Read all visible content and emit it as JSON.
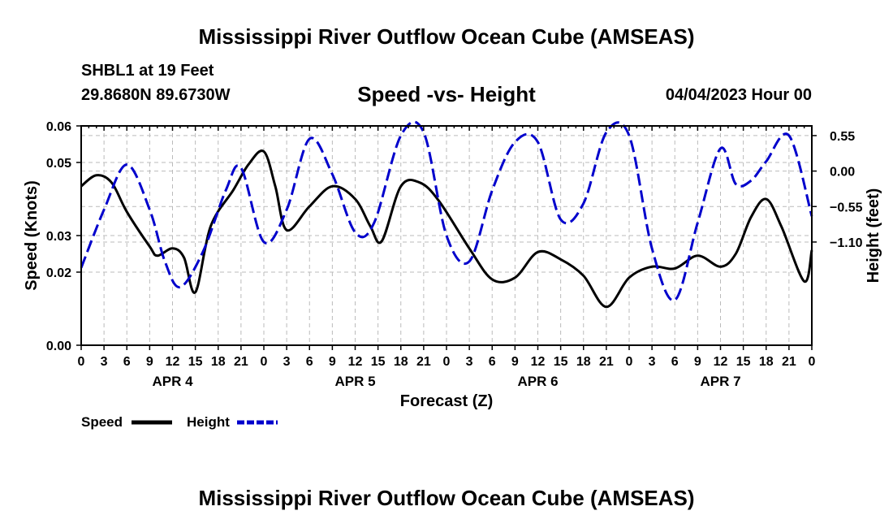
{
  "header": {
    "title": "Mississippi River Outflow Ocean Cube (AMSEAS)",
    "station": "SHBL1 at 19 Feet",
    "coords": "29.8680N  89.6730W",
    "subtitle": "Speed -vs- Height",
    "datetime": "04/04/2023 Hour 00"
  },
  "footer": {
    "title": "Mississippi River Outflow Ocean Cube (AMSEAS)"
  },
  "colors": {
    "speed": "#000000",
    "height": "#0000cc",
    "grid": "#bbbbbb"
  },
  "chart_data": {
    "type": "line",
    "title": "Speed -vs- Height",
    "xlabel": "Forecast (Z)",
    "ylabel": "Speed (Knots)",
    "y2label": "Height (feet)",
    "xlim": [
      0,
      96
    ],
    "ylim": [
      0,
      0.06
    ],
    "y2lim": [
      -2.7,
      0.7
    ],
    "yticks": [
      0,
      0.02,
      0.03,
      0.05,
      0.06
    ],
    "ytick_labels": [
      "0.00",
      "0.02",
      "0.03",
      "0.05",
      "0.06"
    ],
    "y2ticks": [
      0.55,
      0,
      -0.55,
      -1.1
    ],
    "y2tick_labels": [
      "0.55",
      "0.00",
      "−0.55",
      "−1.10"
    ],
    "xticks": [
      0,
      3,
      6,
      9,
      12,
      15,
      18,
      21,
      24,
      27,
      30,
      33,
      36,
      39,
      42,
      45,
      48,
      51,
      54,
      57,
      60,
      63,
      66,
      69,
      72,
      75,
      78,
      81,
      84,
      87,
      90,
      93,
      96
    ],
    "xtick_labels": [
      "0",
      "3",
      "6",
      "9",
      "12",
      "15",
      "18",
      "21",
      "0",
      "3",
      "6",
      "9",
      "12",
      "15",
      "18",
      "21",
      "0",
      "3",
      "6",
      "9",
      "12",
      "15",
      "18",
      "21",
      "0",
      "3",
      "6",
      "9",
      "12",
      "15",
      "18",
      "21",
      "0"
    ],
    "day_labels": [
      {
        "x": 12,
        "label": "APR 4"
      },
      {
        "x": 36,
        "label": "APR 5"
      },
      {
        "x": 60,
        "label": "APR 6"
      },
      {
        "x": 84,
        "label": "APR 7"
      }
    ],
    "grid": true,
    "legend": [
      {
        "name": "Speed",
        "style": "solid"
      },
      {
        "name": "Height",
        "style": "dashed"
      }
    ],
    "series": [
      {
        "name": "Speed",
        "axis": "left",
        "style": "solid",
        "x": [
          0,
          2,
          4,
          6,
          9,
          10,
          12,
          13.5,
          15,
          17,
          20,
          22,
          24,
          25.5,
          27,
          30,
          33,
          36,
          38,
          39.5,
          42,
          44.5,
          47,
          51,
          54,
          57,
          60,
          63,
          66,
          69,
          72,
          75,
          78,
          81,
          84,
          86,
          88,
          90,
          92,
          95,
          96
        ],
        "y": [
          0.0435,
          0.0465,
          0.0445,
          0.0365,
          0.027,
          0.0245,
          0.0265,
          0.024,
          0.0145,
          0.0325,
          0.0425,
          0.0495,
          0.053,
          0.0435,
          0.0315,
          0.038,
          0.0435,
          0.04,
          0.0325,
          0.0285,
          0.0435,
          0.0445,
          0.0395,
          0.0265,
          0.018,
          0.0185,
          0.0255,
          0.0235,
          0.019,
          0.0105,
          0.0185,
          0.0215,
          0.021,
          0.0245,
          0.0215,
          0.025,
          0.035,
          0.04,
          0.0325,
          0.0175,
          0.026
        ]
      },
      {
        "name": "Height",
        "axis": "right",
        "style": "dashed",
        "x": [
          0,
          3,
          6,
          9,
          11,
          13,
          16,
          19,
          21,
          24,
          27,
          30,
          33,
          36,
          38.5,
          42,
          45,
          48,
          51,
          54,
          57,
          60,
          63,
          66,
          69,
          72,
          75,
          78,
          81,
          84,
          86,
          88,
          90,
          93,
          96
        ],
        "y": [
          -1.5,
          -0.6,
          0.1,
          -0.6,
          -1.4,
          -1.8,
          -1.25,
          -0.3,
          0.05,
          -1.1,
          -0.6,
          0.5,
          -0.05,
          -0.95,
          -0.8,
          0.55,
          0.6,
          -1.0,
          -1.4,
          -0.3,
          0.45,
          0.45,
          -0.75,
          -0.5,
          0.6,
          0.55,
          -1.2,
          -2.0,
          -0.8,
          0.35,
          -0.2,
          -0.15,
          0.15,
          0.55,
          -0.7
        ]
      }
    ]
  }
}
